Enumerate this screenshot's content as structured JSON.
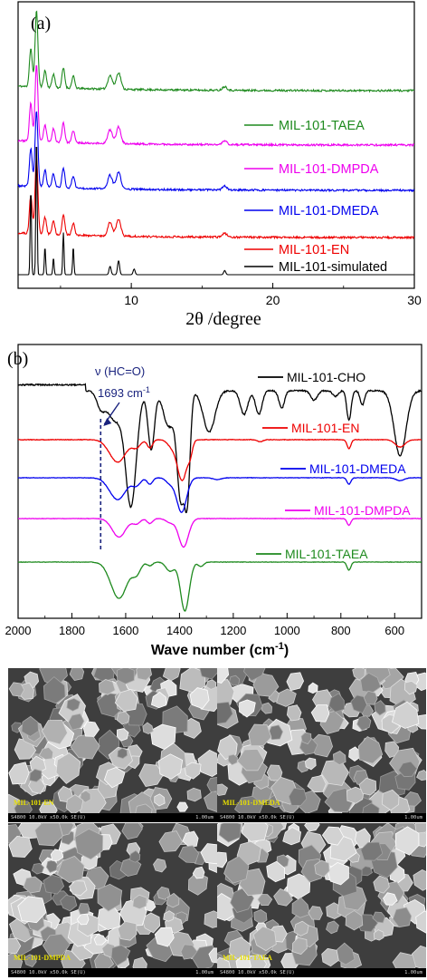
{
  "chart_data": [
    {
      "type": "line",
      "panel_label": "(a)",
      "xlabel": "2θ /degree",
      "xlim": [
        2,
        30
      ],
      "xticks": [
        10,
        20,
        30
      ],
      "yticks": "none",
      "colors": {
        "MIL-101-TAEA": "#1e8a1e",
        "MIL-101-DMPDA": "#ee00ee",
        "MIL-101-DMEDA": "#0000ee",
        "MIL-101-EN": "#ee0000",
        "MIL-101-simulated": "#000000"
      },
      "series": [
        {
          "name": "MIL-101-TAEA",
          "peaks_2theta": [
            2.9,
            3.3,
            3.9,
            4.5,
            5.2,
            5.9,
            8.5,
            9.1,
            16.6
          ]
        },
        {
          "name": "MIL-101-DMPDA",
          "peaks_2theta": [
            2.9,
            3.3,
            3.9,
            4.5,
            5.2,
            5.9,
            8.5,
            9.1,
            16.6
          ]
        },
        {
          "name": "MIL-101-DMEDA",
          "peaks_2theta": [
            2.9,
            3.3,
            3.9,
            4.5,
            5.2,
            5.9,
            8.5,
            9.1,
            16.6
          ]
        },
        {
          "name": "MIL-101-EN",
          "peaks_2theta": [
            2.9,
            3.3,
            3.9,
            4.5,
            5.2,
            5.9,
            8.5,
            9.1,
            16.6
          ]
        },
        {
          "name": "MIL-101-simulated",
          "peaks_2theta": [
            2.9,
            3.3,
            3.9,
            4.5,
            5.2,
            5.9,
            8.5,
            9.1,
            10.2,
            16.6
          ]
        }
      ]
    },
    {
      "type": "line",
      "panel_label": "(b)",
      "xlabel": "Wave number (cm",
      "xlabel_sup": "-1",
      "xlabel_end": ")",
      "xlim": [
        2000,
        500
      ],
      "xticks": [
        2000,
        1800,
        1600,
        1400,
        1200,
        1000,
        800,
        600
      ],
      "annotation": {
        "line1": "ν (HC=O)",
        "line2": "1693 cm",
        "line2_sup": "-1",
        "x": 1693
      },
      "colors": {
        "MIL-101-CHO": "#000000",
        "MIL-101-EN": "#ee0000",
        "MIL-101-DMEDA": "#0000ee",
        "MIL-101-DMPDA": "#ee00ee",
        "MIL-101-TAEA": "#1e8a1e"
      },
      "series": [
        {
          "name": "MIL-101-CHO",
          "bands_cm1": [
            1693,
            1580,
            1505,
            1400,
            1385,
            1160,
            1020,
            770,
            580
          ]
        },
        {
          "name": "MIL-101-EN",
          "bands_cm1": [
            1630,
            1510,
            1390,
            770,
            580
          ]
        },
        {
          "name": "MIL-101-DMEDA",
          "bands_cm1": [
            1630,
            1510,
            1390,
            770
          ]
        },
        {
          "name": "MIL-101-DMPDA",
          "bands_cm1": [
            1625,
            1510,
            1385,
            770
          ]
        },
        {
          "name": "MIL-101-TAEA",
          "bands_cm1": [
            1625,
            1510,
            1380,
            770
          ]
        }
      ]
    }
  ],
  "sem": {
    "panels": [
      {
        "label": "MIL-101-EN",
        "meta": "S4800 10.0kV x50.0k SE(U)",
        "scale": "1.00um"
      },
      {
        "label": "MIL-101-DMEDA",
        "meta": "S4800 10.0kV x50.0k SE(U)",
        "scale": "1.00um"
      },
      {
        "label": "MIL-101-DMPDA",
        "meta": "S4800 10.0kV x50.0k SE(U)",
        "scale": "1.00um"
      },
      {
        "label": "MIL-101-TAEA",
        "meta": "S4800 10.0kV x50.0k SE(U)",
        "scale": "1.00um"
      }
    ]
  }
}
